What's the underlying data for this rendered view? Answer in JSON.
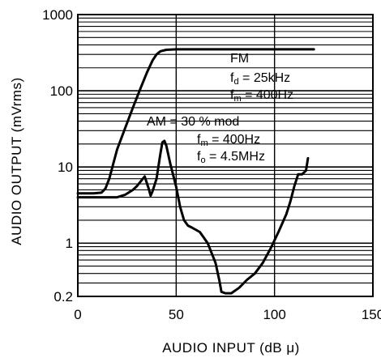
{
  "chart_data": {
    "type": "line",
    "xlabel": "AUDIO INPUT (dB μ)",
    "ylabel": "AUDIO OUTPUT (mVrms)",
    "xlim": [
      0,
      150
    ],
    "ylim": [
      0.2,
      1000
    ],
    "y_scale": "log",
    "grid": true,
    "x_ticks": [
      0,
      50,
      100,
      150
    ],
    "x_tick_labels": [
      "0",
      "50",
      "100",
      "150"
    ],
    "y_ticks": [
      0.2,
      1,
      10,
      100,
      1000
    ],
    "y_tick_labels": [
      "0.2",
      "1",
      "10",
      "100",
      "1000"
    ],
    "annotations": {
      "fm": {
        "title": "FM",
        "fd_sym": "f",
        "fd_sub": "d",
        "fd_val": " = 25kHz",
        "fm_sym": "f",
        "fm_sub": "m",
        "fm_val": " = 400Hz"
      },
      "am": {
        "title": "AM = 30 % mod",
        "fm_sym": "f",
        "fm_sub": "m",
        "fm_val": " = 400Hz",
        "fo_sym": "f",
        "fo_sub": "o",
        "fo_val": " = 4.5MHz"
      }
    },
    "series": [
      {
        "key": "fm",
        "x": [
          0,
          8,
          12,
          14,
          16,
          18,
          20,
          24,
          28,
          32,
          35,
          38,
          40,
          42,
          45,
          50,
          60,
          80,
          100,
          120
        ],
        "y": [
          4.5,
          4.5,
          4.6,
          5.2,
          7,
          11,
          17,
          32,
          60,
          110,
          170,
          250,
          300,
          330,
          345,
          350,
          350,
          350,
          350,
          350
        ]
      },
      {
        "key": "am",
        "x": [
          0,
          12,
          20,
          24,
          28,
          30,
          32,
          34,
          36,
          37,
          38,
          40,
          42,
          43,
          44,
          45,
          47,
          50,
          52,
          54,
          56,
          58,
          62,
          66,
          70,
          72,
          73,
          75,
          78,
          82,
          86,
          90,
          94,
          98,
          102,
          106,
          108,
          110,
          112,
          114,
          116,
          117
        ],
        "y": [
          4,
          4,
          4,
          4.3,
          5,
          5.6,
          6.5,
          7.5,
          5.2,
          4.2,
          4.8,
          7,
          15,
          21,
          22,
          19,
          11,
          5.5,
          3,
          2,
          1.7,
          1.6,
          1.4,
          1.0,
          0.55,
          0.32,
          0.23,
          0.22,
          0.22,
          0.26,
          0.33,
          0.4,
          0.55,
          0.85,
          1.4,
          2.4,
          3.5,
          5.5,
          8,
          8,
          9,
          13
        ]
      }
    ]
  }
}
